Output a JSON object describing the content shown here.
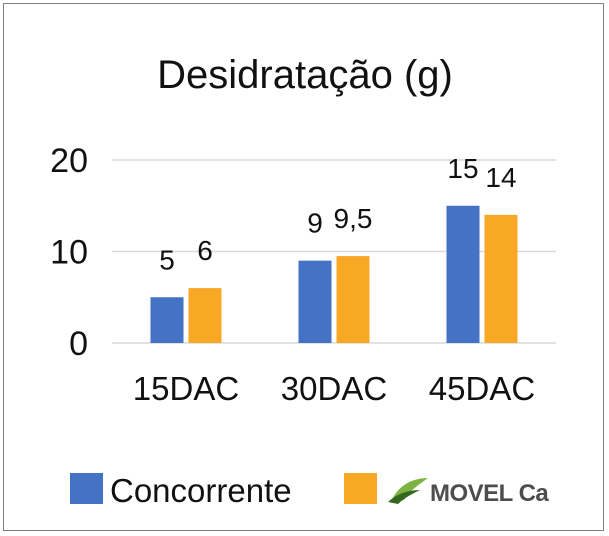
{
  "chart_data": {
    "type": "bar",
    "title": "Desidratação (g)",
    "categories": [
      "15DAC",
      "30DAC",
      "45DAC"
    ],
    "series": [
      {
        "name": "Concorrente",
        "values": [
          5,
          9,
          15
        ],
        "labels": [
          "5",
          "9",
          "15"
        ],
        "color": "#4472C4"
      },
      {
        "name": "MOVEL Ca",
        "values": [
          6,
          9.5,
          14
        ],
        "labels": [
          "6",
          "9,5",
          "14"
        ],
        "color": "#F9A825"
      }
    ],
    "yticks": [
      "0",
      "10",
      "20"
    ],
    "ytick_values": [
      0,
      10,
      20
    ],
    "ylim": [
      0,
      20
    ],
    "grid": true,
    "legend_position": "bottom"
  },
  "legend": {
    "series1_label": "Concorrente",
    "logo_text": "MOVEL Ca",
    "logo_icon": "leaf-swoosh-icon"
  },
  "colors": {
    "gridline": "#d9d9d9",
    "frame": "#7f7f7f",
    "logo_green": "#7cb342",
    "logo_dark_green": "#33691e"
  }
}
